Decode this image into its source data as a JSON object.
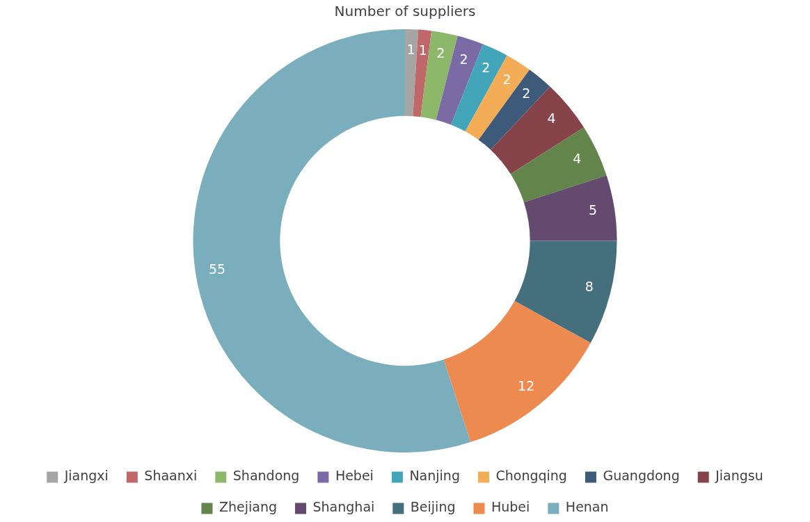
{
  "chart_data": {
    "type": "donut",
    "title": "Number of suppliers",
    "categories": [
      "Jiangxi",
      "Shaanxi",
      "Shandong",
      "Hebei",
      "Nanjing",
      "Chongqing",
      "Guangdong",
      "Jiangsu",
      "Zhejiang",
      "Shanghai",
      "Beijing",
      "Hubei",
      "Henan"
    ],
    "values": [
      1,
      1,
      2,
      2,
      2,
      2,
      2,
      4,
      4,
      5,
      8,
      12,
      55
    ],
    "colors": [
      "#a5a5a5",
      "#c0676a",
      "#8db86a",
      "#7a6aa6",
      "#43a5ba",
      "#f3ad56",
      "#3d5a7a",
      "#86444a",
      "#63844a",
      "#634a6e",
      "#466f7e",
      "#ec8a4f",
      "#7aaebc"
    ],
    "data_labels": true,
    "legend": "bottom"
  }
}
